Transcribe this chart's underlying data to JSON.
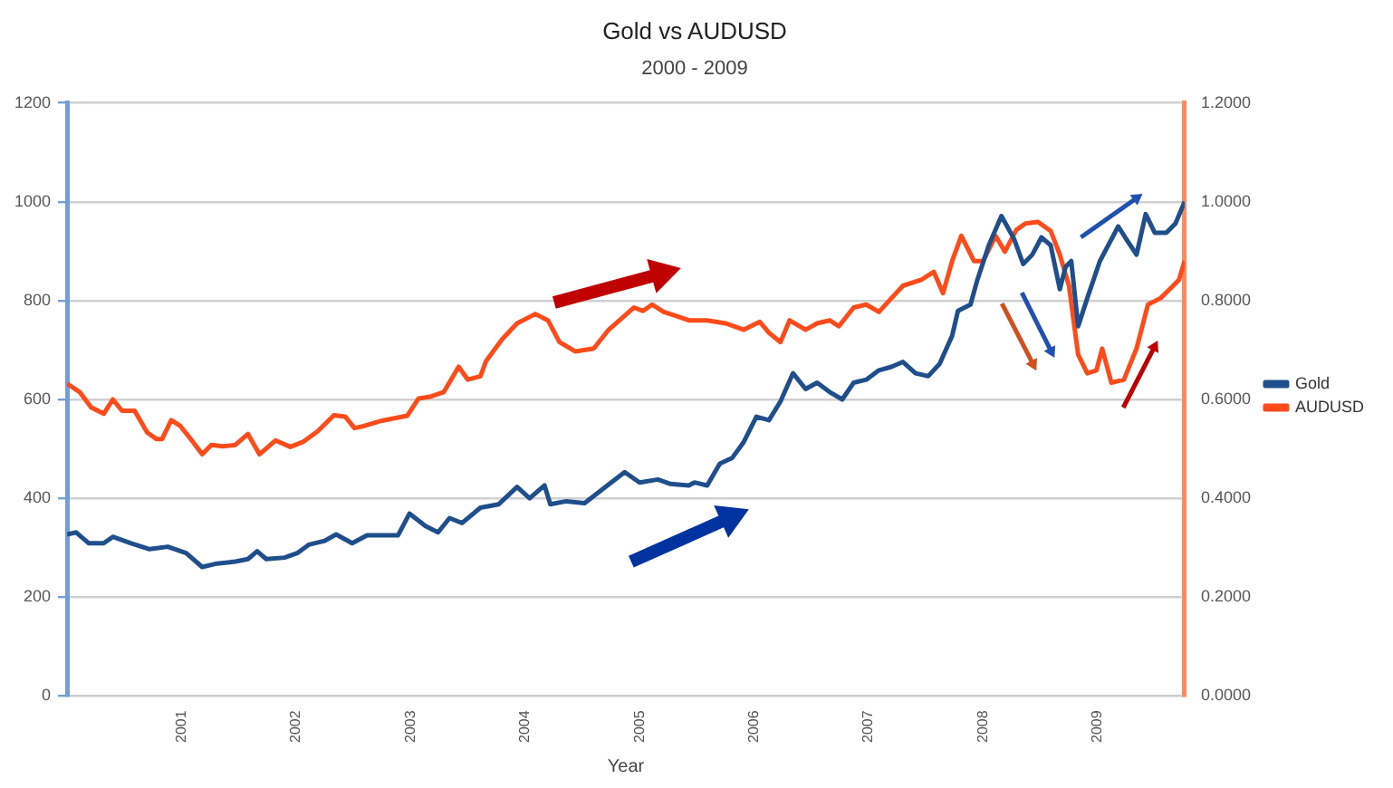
{
  "chart_data": {
    "type": "line",
    "title": "Gold vs AUDUSD",
    "subtitle": "2000 - 2009",
    "xlabel": "Year",
    "xlim": [
      2000,
      2009.76
    ],
    "xticks": [
      2001,
      2002,
      2003,
      2004,
      2005,
      2006,
      2007,
      2008,
      2009
    ],
    "ylim": [
      0,
      1200
    ],
    "yticks": [
      0,
      200,
      400,
      600,
      800,
      1000,
      1200
    ],
    "y2lim": [
      0,
      1.2
    ],
    "y2ticks": [
      {
        "value": 0,
        "label": "0.0000"
      },
      {
        "value": 0.2,
        "label": "0.2000"
      },
      {
        "value": 0.4,
        "label": "0.4000"
      },
      {
        "value": 0.6,
        "label": "0.6000"
      },
      {
        "value": 0.8,
        "label": "0.8000"
      },
      {
        "value": 1.0,
        "label": "1.0000"
      },
      {
        "value": 1.2,
        "label": "1.2000"
      }
    ],
    "grid": "y",
    "legend": "right",
    "marker": "none",
    "line_style": "solid",
    "series": [
      {
        "name": "Gold",
        "color": "#1f4e8c",
        "x": [
          2000.0,
          2000.08,
          2000.19,
          2000.32,
          2000.4,
          2000.56,
          2000.72,
          2000.88,
          2001.04,
          2001.18,
          2001.31,
          2001.47,
          2001.58,
          2001.66,
          2001.74,
          2001.9,
          2002.01,
          2002.11,
          2002.25,
          2002.35,
          2002.49,
          2002.62,
          2002.75,
          2002.89,
          2002.99,
          2003.13,
          2003.24,
          2003.34,
          2003.45,
          2003.61,
          2003.77,
          2003.93,
          2004.04,
          2004.17,
          2004.22,
          2004.36,
          2004.52,
          2004.68,
          2004.87,
          2005.0,
          2005.16,
          2005.27,
          2005.43,
          2005.48,
          2005.59,
          2005.7,
          2005.81,
          2005.91,
          2006.02,
          2006.13,
          2006.23,
          2006.34,
          2006.45,
          2006.55,
          2006.66,
          2006.77,
          2006.87,
          2006.98,
          2007.09,
          2007.2,
          2007.3,
          2007.41,
          2007.52,
          2007.62,
          2007.73,
          2007.78,
          2007.89,
          2007.95,
          2008.05,
          2008.16,
          2008.27,
          2008.35,
          2008.43,
          2008.51,
          2008.59,
          2008.67,
          2008.72,
          2008.77,
          2008.83,
          2008.91,
          2009.02,
          2009.18,
          2009.26,
          2009.34,
          2009.42,
          2009.5,
          2009.6,
          2009.68,
          2009.76
        ],
        "values": [
          327,
          331,
          309,
          309,
          322,
          309,
          297,
          302,
          289,
          261,
          268,
          272,
          277,
          293,
          277,
          280,
          289,
          306,
          314,
          327,
          309,
          325,
          325,
          325,
          369,
          344,
          331,
          360,
          350,
          381,
          388,
          423,
          400,
          426,
          388,
          394,
          390,
          419,
          453,
          432,
          438,
          429,
          426,
          432,
          426,
          470,
          482,
          514,
          565,
          558,
          596,
          653,
          621,
          634,
          615,
          600,
          634,
          640,
          659,
          666,
          676,
          653,
          647,
          672,
          729,
          779,
          792,
          842,
          912,
          971,
          925,
          874,
          893,
          928,
          912,
          823,
          868,
          880,
          748,
          805,
          880,
          950,
          921,
          893,
          975,
          937,
          937,
          956,
          1000
        ]
      },
      {
        "name": "AUDUSD",
        "color": "#ff4a1a",
        "axis": "y2",
        "x": [
          2000.0,
          2000.11,
          2000.21,
          2000.32,
          2000.4,
          2000.48,
          2000.59,
          2000.7,
          2000.78,
          2000.83,
          2000.91,
          2000.99,
          2001.1,
          2001.18,
          2001.26,
          2001.36,
          2001.47,
          2001.58,
          2001.68,
          2001.82,
          2001.95,
          2002.06,
          2002.19,
          2002.33,
          2002.43,
          2002.51,
          2002.59,
          2002.75,
          2002.97,
          2003.07,
          2003.18,
          2003.29,
          2003.42,
          2003.5,
          2003.61,
          2003.66,
          2003.8,
          2003.93,
          2004.09,
          2004.2,
          2004.3,
          2004.44,
          2004.6,
          2004.73,
          2004.95,
          2005.03,
          2005.11,
          2005.21,
          2005.32,
          2005.43,
          2005.59,
          2005.75,
          2005.91,
          2006.05,
          2006.13,
          2006.23,
          2006.31,
          2006.45,
          2006.55,
          2006.66,
          2006.74,
          2006.87,
          2006.98,
          2007.09,
          2007.2,
          2007.3,
          2007.46,
          2007.57,
          2007.65,
          2007.73,
          2007.81,
          2007.92,
          2008.0,
          2008.11,
          2008.19,
          2008.29,
          2008.37,
          2008.48,
          2008.59,
          2008.67,
          2008.75,
          2008.83,
          2008.91,
          2008.99,
          2009.04,
          2009.12,
          2009.23,
          2009.34,
          2009.44,
          2009.55,
          2009.66,
          2009.71,
          2009.76
        ],
        "values": [
          0.632,
          0.615,
          0.584,
          0.571,
          0.6,
          0.577,
          0.577,
          0.533,
          0.52,
          0.52,
          0.558,
          0.546,
          0.514,
          0.489,
          0.508,
          0.505,
          0.508,
          0.53,
          0.489,
          0.517,
          0.504,
          0.514,
          0.536,
          0.568,
          0.565,
          0.542,
          0.546,
          0.557,
          0.567,
          0.602,
          0.606,
          0.615,
          0.666,
          0.64,
          0.647,
          0.678,
          0.722,
          0.754,
          0.773,
          0.76,
          0.716,
          0.697,
          0.703,
          0.741,
          0.786,
          0.779,
          0.792,
          0.777,
          0.769,
          0.76,
          0.76,
          0.754,
          0.741,
          0.757,
          0.735,
          0.716,
          0.76,
          0.741,
          0.754,
          0.76,
          0.748,
          0.786,
          0.792,
          0.777,
          0.805,
          0.83,
          0.842,
          0.858,
          0.815,
          0.88,
          0.931,
          0.88,
          0.88,
          0.931,
          0.899,
          0.943,
          0.956,
          0.959,
          0.941,
          0.893,
          0.83,
          0.691,
          0.653,
          0.659,
          0.703,
          0.634,
          0.64,
          0.703,
          0.792,
          0.805,
          0.83,
          0.842,
          0.88
        ]
      }
    ]
  }
}
